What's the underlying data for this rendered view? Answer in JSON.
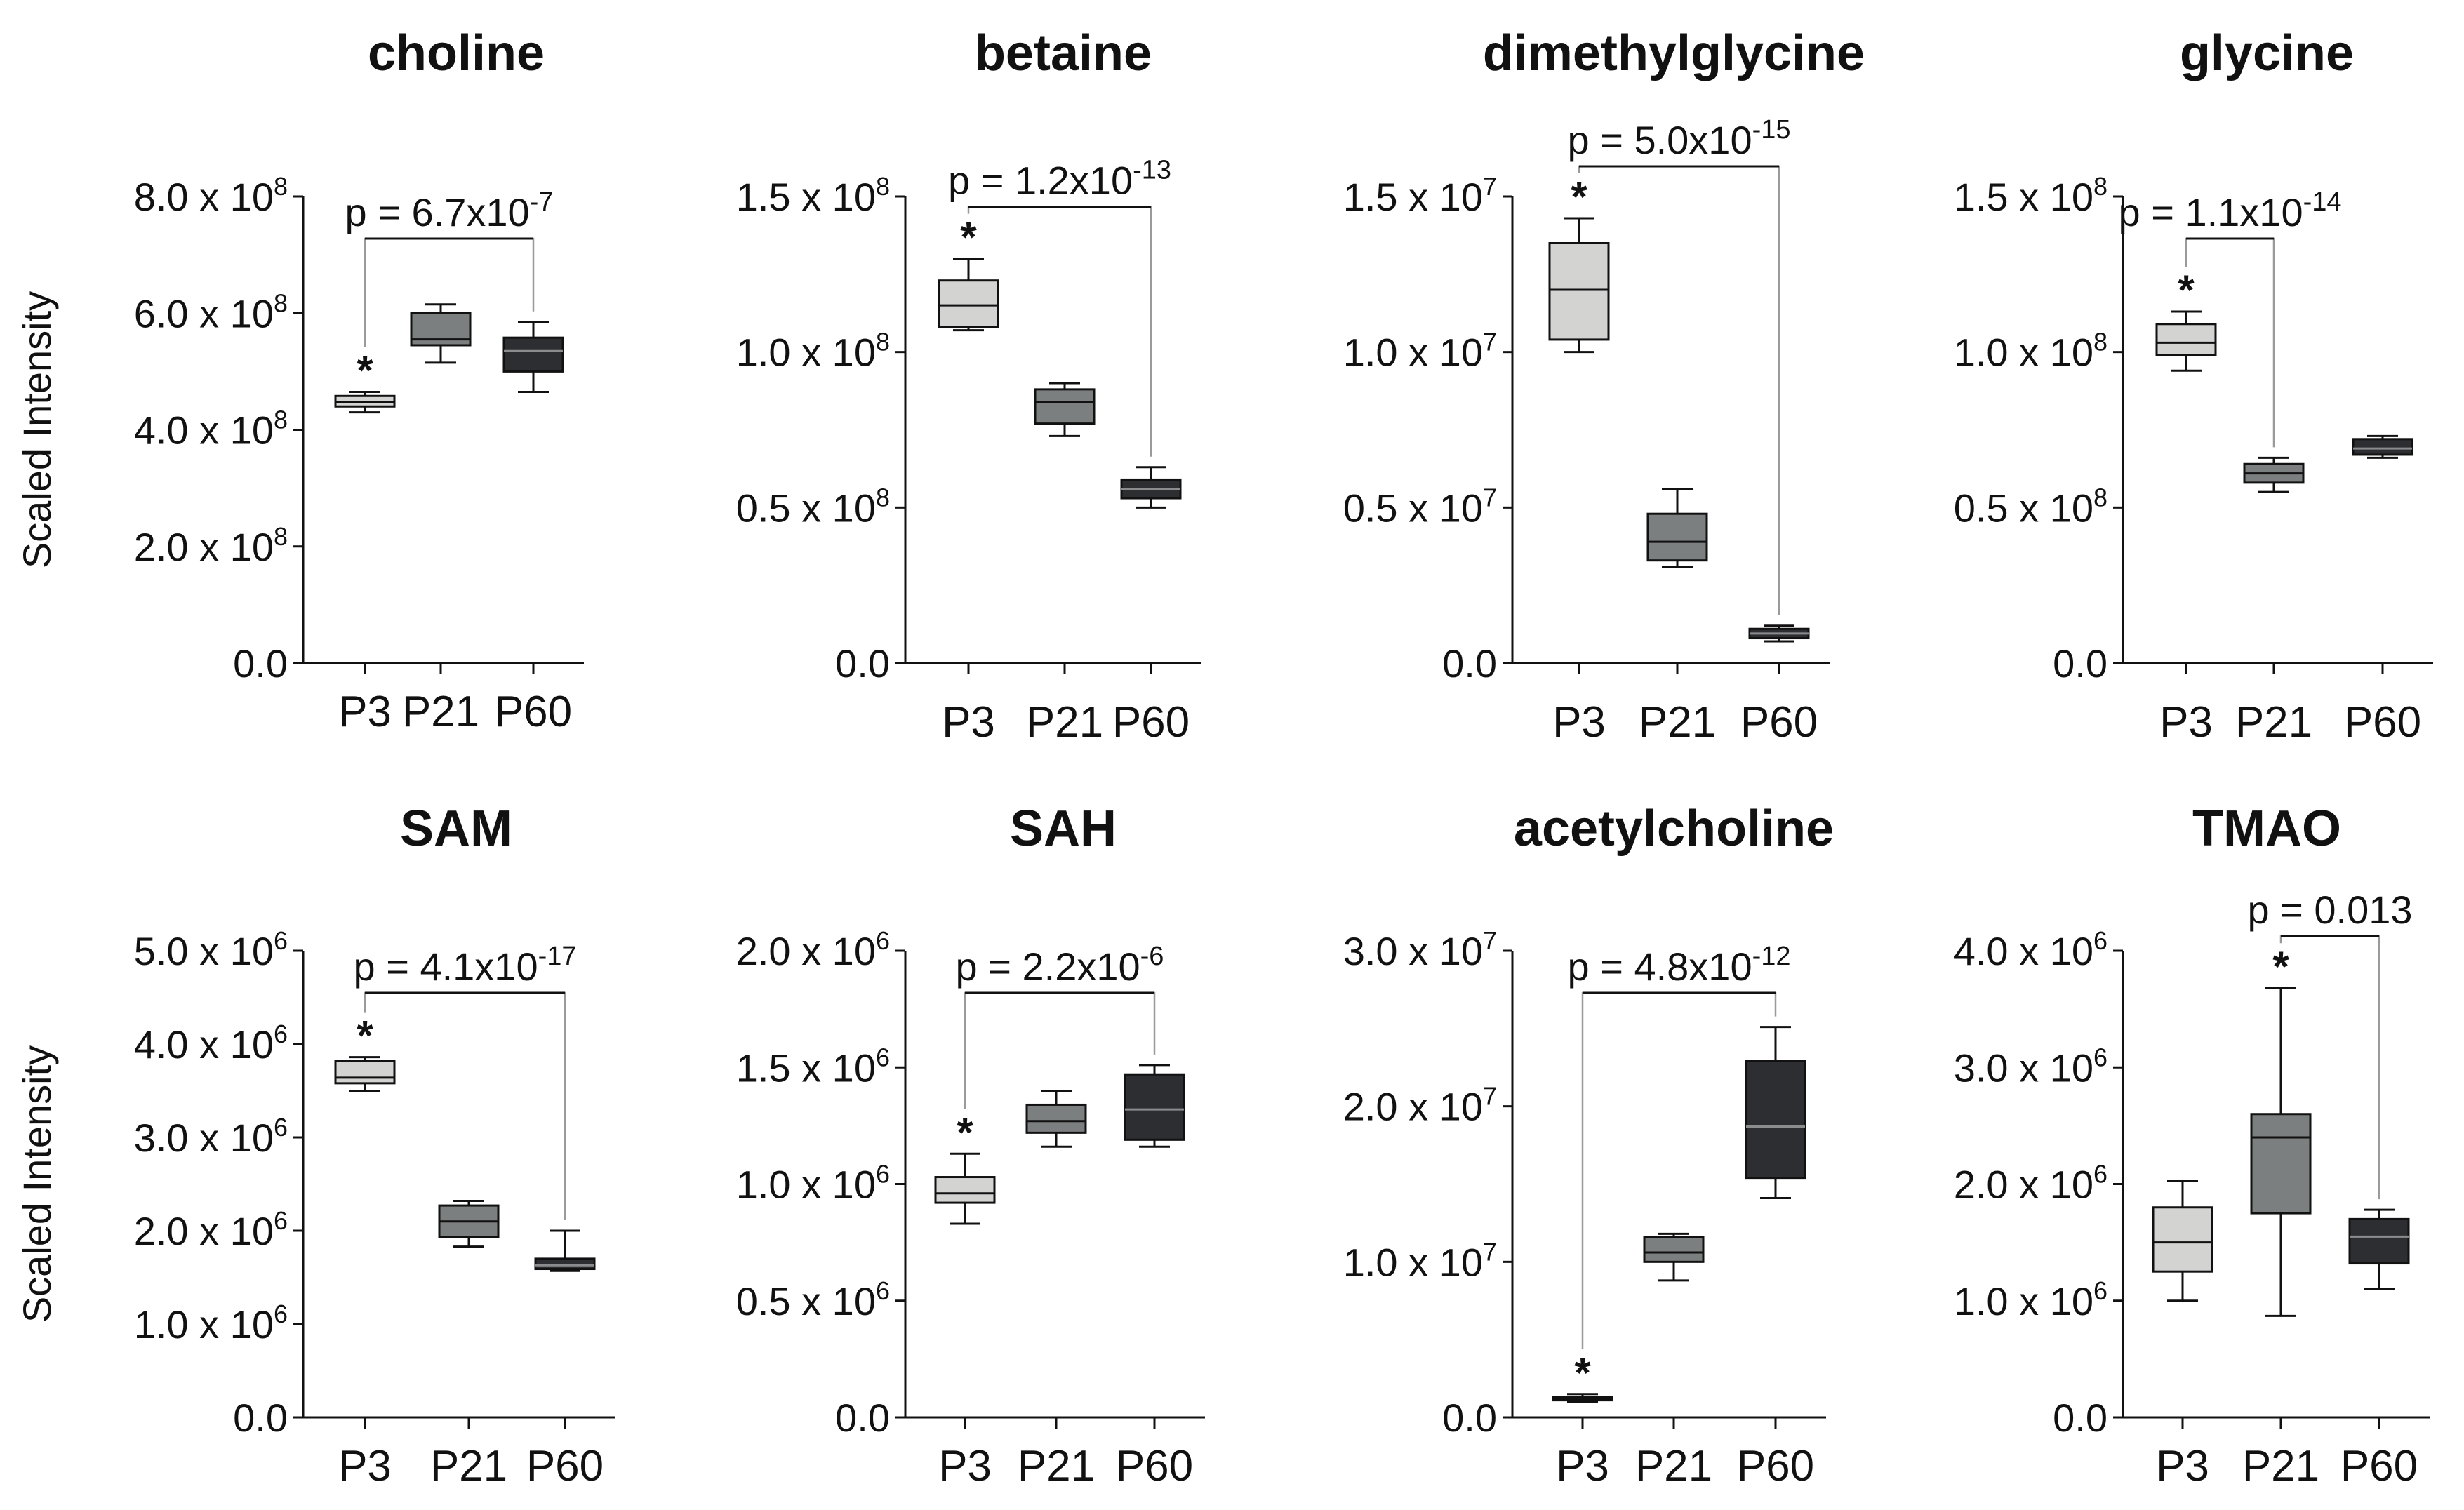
{
  "figure": {
    "y_axis_label": "Scaled Intensity",
    "categories": [
      "P3",
      "P21",
      "P60"
    ],
    "box_colors": [
      "#d3d4d2",
      "#7c7f80",
      "#2c2e31"
    ]
  },
  "chart_data": [
    {
      "type": "box",
      "title": "choline",
      "ylabel": "Scaled Intensity",
      "ylim": [
        0,
        800000000.0
      ],
      "y_ticks": [
        0,
        200000000.0,
        400000000.0,
        600000000.0,
        800000000.0
      ],
      "tick_labels": [
        {
          "base": "0.0",
          "exp": ""
        },
        {
          "base": "2.0 x 10",
          "exp": "8"
        },
        {
          "base": "4.0 x 10",
          "exp": "8"
        },
        {
          "base": "6.0 x 10",
          "exp": "8"
        },
        {
          "base": "8.0 x 10",
          "exp": "8"
        }
      ],
      "categories": [
        "P3",
        "P21",
        "P60"
      ],
      "boxes": [
        {
          "min": 430000000.0,
          "q1": 440000000.0,
          "median": 448000000.0,
          "q3": 458000000.0,
          "max": 465000000.0
        },
        {
          "min": 515000000.0,
          "q1": 545000000.0,
          "median": 555000000.0,
          "q3": 600000000.0,
          "max": 615000000.0
        },
        {
          "min": 465000000.0,
          "q1": 500000000.0,
          "median": 535000000.0,
          "q3": 558000000.0,
          "max": 585000000.0
        }
      ],
      "significance": {
        "label": "p = 6.7x10",
        "exp": "-7",
        "from": "P3",
        "to": "P60",
        "star_on": "P3"
      }
    },
    {
      "type": "box",
      "title": "betaine",
      "ylabel": "",
      "ylim": [
        0,
        150000000.0
      ],
      "y_ticks": [
        0,
        50000000.0,
        100000000.0,
        150000000.0
      ],
      "tick_labels": [
        {
          "base": "0.0",
          "exp": ""
        },
        {
          "base": "0.5 x 10",
          "exp": "8"
        },
        {
          "base": "1.0 x 10",
          "exp": "8"
        },
        {
          "base": "1.5 x 10",
          "exp": "8"
        }
      ],
      "categories": [
        "P3",
        "P21",
        "P60"
      ],
      "boxes": [
        {
          "min": 107000000.0,
          "q1": 108000000.0,
          "median": 115000000.0,
          "q3": 123000000.0,
          "max": 130000000.0
        },
        {
          "min": 73000000.0,
          "q1": 77000000.0,
          "median": 84000000.0,
          "q3": 88000000.0,
          "max": 90000000.0
        },
        {
          "min": 50000000.0,
          "q1": 53000000.0,
          "median": 56000000.0,
          "q3": 59000000.0,
          "max": 63000000.0
        }
      ],
      "significance": {
        "label": "p = 1.2x10",
        "exp": "-13",
        "from": "P3",
        "to": "P60",
        "star_on": "P3"
      }
    },
    {
      "type": "box",
      "title": "dimethylglycine",
      "ylabel": "",
      "ylim": [
        0,
        15000000.0
      ],
      "y_ticks": [
        0,
        5000000.0,
        10000000.0,
        15000000.0
      ],
      "tick_labels": [
        {
          "base": "0.0",
          "exp": ""
        },
        {
          "base": "0.5 x 10",
          "exp": "7"
        },
        {
          "base": "1.0 x 10",
          "exp": "7"
        },
        {
          "base": "1.5 x 10",
          "exp": "7"
        }
      ],
      "categories": [
        "P3",
        "P21",
        "P60"
      ],
      "boxes": [
        {
          "min": 10000000.0,
          "q1": 10400000.0,
          "median": 12000000.0,
          "q3": 13500000.0,
          "max": 14300000.0
        },
        {
          "min": 3100000.0,
          "q1": 3300000.0,
          "median": 3900000.0,
          "q3": 4800000.0,
          "max": 5600000.0
        },
        {
          "min": 700000.0,
          "q1": 800000.0,
          "median": 950000.0,
          "q3": 1100000.0,
          "max": 1200000.0
        }
      ],
      "significance": {
        "label": "p = 5.0x10",
        "exp": "-15",
        "from": "P3",
        "to": "P60",
        "star_on": "P3"
      }
    },
    {
      "type": "box",
      "title": "glycine",
      "ylabel": "",
      "ylim": [
        0,
        150000000.0
      ],
      "y_ticks": [
        0,
        50000000.0,
        100000000.0,
        150000000.0
      ],
      "tick_labels": [
        {
          "base": "0.0",
          "exp": ""
        },
        {
          "base": "0.5 x 10",
          "exp": "8"
        },
        {
          "base": "1.0 x 10",
          "exp": "8"
        },
        {
          "base": "1.5 x 10",
          "exp": "8"
        }
      ],
      "categories": [
        "P3",
        "P21",
        "P60"
      ],
      "boxes": [
        {
          "min": 94000000.0,
          "q1": 99000000.0,
          "median": 103000000.0,
          "q3": 109000000.0,
          "max": 113000000.0
        },
        {
          "min": 55000000.0,
          "q1": 58000000.0,
          "median": 61000000.0,
          "q3": 64000000.0,
          "max": 66000000.0
        },
        {
          "min": 66000000.0,
          "q1": 67000000.0,
          "median": 69000000.0,
          "q3": 72000000.0,
          "max": 73000000.0
        }
      ],
      "significance": {
        "label": "p = 1.1x10",
        "exp": "-14",
        "from": "P3",
        "to": "P21",
        "star_on": "P3"
      }
    },
    {
      "type": "box",
      "title": "SAM",
      "ylabel": "Scaled Intensity",
      "ylim": [
        0,
        5000000.0
      ],
      "y_ticks": [
        0,
        1000000.0,
        2000000.0,
        3000000.0,
        4000000.0,
        5000000.0
      ],
      "tick_labels": [
        {
          "base": "0.0",
          "exp": ""
        },
        {
          "base": "1.0 x 10",
          "exp": "6"
        },
        {
          "base": "2.0 x 10",
          "exp": "6"
        },
        {
          "base": "3.0 x 10",
          "exp": "6"
        },
        {
          "base": "4.0 x 10",
          "exp": "6"
        },
        {
          "base": "5.0 x 10",
          "exp": "6"
        }
      ],
      "categories": [
        "P3",
        "P21",
        "P60"
      ],
      "boxes": [
        {
          "min": 3500000.0,
          "q1": 3580000.0,
          "median": 3640000.0,
          "q3": 3820000.0,
          "max": 3860000.0
        },
        {
          "min": 1830000.0,
          "q1": 1930000.0,
          "median": 2100000.0,
          "q3": 2270000.0,
          "max": 2320000.0
        },
        {
          "min": 1570000.0,
          "q1": 1590000.0,
          "median": 1630000.0,
          "q3": 1700000.0,
          "max": 2000000.0
        }
      ],
      "significance": {
        "label": "p = 4.1x10",
        "exp": "-17",
        "from": "P3",
        "to": "P60",
        "star_on": "P3"
      }
    },
    {
      "type": "box",
      "title": "SAH",
      "ylabel": "",
      "ylim": [
        0,
        2000000.0
      ],
      "y_ticks": [
        0,
        500000.0,
        1000000.0,
        1500000.0,
        2000000.0
      ],
      "tick_labels": [
        {
          "base": "0.0",
          "exp": ""
        },
        {
          "base": "0.5 x 10",
          "exp": "6"
        },
        {
          "base": "1.0 x 10",
          "exp": "6"
        },
        {
          "base": "1.5 x 10",
          "exp": "6"
        },
        {
          "base": "2.0 x 10",
          "exp": "6"
        }
      ],
      "categories": [
        "P3",
        "P21",
        "P60"
      ],
      "boxes": [
        {
          "min": 830000.0,
          "q1": 920000.0,
          "median": 960000.0,
          "q3": 1030000.0,
          "max": 1130000.0
        },
        {
          "min": 1160000.0,
          "q1": 1220000.0,
          "median": 1270000.0,
          "q3": 1340000.0,
          "max": 1400000.0
        },
        {
          "min": 1160000.0,
          "q1": 1190000.0,
          "median": 1320000.0,
          "q3": 1470000.0,
          "max": 1510000.0
        }
      ],
      "significance": {
        "label": "p = 2.2x10",
        "exp": "-6",
        "from": "P3",
        "to": "P60",
        "star_on": "P3"
      }
    },
    {
      "type": "box",
      "title": "acetylcholine",
      "ylabel": "",
      "ylim": [
        0,
        30000000.0
      ],
      "y_ticks": [
        0,
        10000000.0,
        20000000.0,
        30000000.0
      ],
      "tick_labels": [
        {
          "base": "0.0",
          "exp": ""
        },
        {
          "base": "1.0 x 10",
          "exp": "7"
        },
        {
          "base": "2.0 x 10",
          "exp": "7"
        },
        {
          "base": "3.0 x 10",
          "exp": "7"
        }
      ],
      "categories": [
        "P3",
        "P21",
        "P60"
      ],
      "boxes": [
        {
          "min": 1000000.0,
          "q1": 1100000.0,
          "median": 1200000.0,
          "q3": 1300000.0,
          "max": 1500000.0
        },
        {
          "min": 8800000.0,
          "q1": 10000000.0,
          "median": 10600000.0,
          "q3": 11600000.0,
          "max": 11800000.0
        },
        {
          "min": 14100000.0,
          "q1": 15400000.0,
          "median": 18700000.0,
          "q3": 22900000.0,
          "max": 25100000.0
        }
      ],
      "significance": {
        "label": "p = 4.8x10",
        "exp": "-12",
        "from": "P3",
        "to": "P60",
        "star_on": "P3"
      }
    },
    {
      "type": "box",
      "title": "TMAO",
      "ylabel": "",
      "ylim": [
        0,
        4000000.0
      ],
      "y_ticks": [
        0,
        1000000.0,
        2000000.0,
        3000000.0,
        4000000.0
      ],
      "tick_labels": [
        {
          "base": "0.0",
          "exp": ""
        },
        {
          "base": "1.0 x 10",
          "exp": "6"
        },
        {
          "base": "2.0 x 10",
          "exp": "6"
        },
        {
          "base": "3.0 x 10",
          "exp": "6"
        },
        {
          "base": "4.0 x 10",
          "exp": "6"
        }
      ],
      "categories": [
        "P3",
        "P21",
        "P60"
      ],
      "boxes": [
        {
          "min": 1000000.0,
          "q1": 1250000.0,
          "median": 1500000.0,
          "q3": 1800000.0,
          "max": 2030000.0
        },
        {
          "min": 870000.0,
          "q1": 1750000.0,
          "median": 2400000.0,
          "q3": 2600000.0,
          "max": 3680000.0
        },
        {
          "min": 1100000.0,
          "q1": 1320000.0,
          "median": 1550000.0,
          "q3": 1700000.0,
          "max": 1780000.0
        }
      ],
      "significance": {
        "label": "p = 0.013",
        "exp": "",
        "from": "P21",
        "to": "P60",
        "star_on": "P21"
      }
    }
  ]
}
